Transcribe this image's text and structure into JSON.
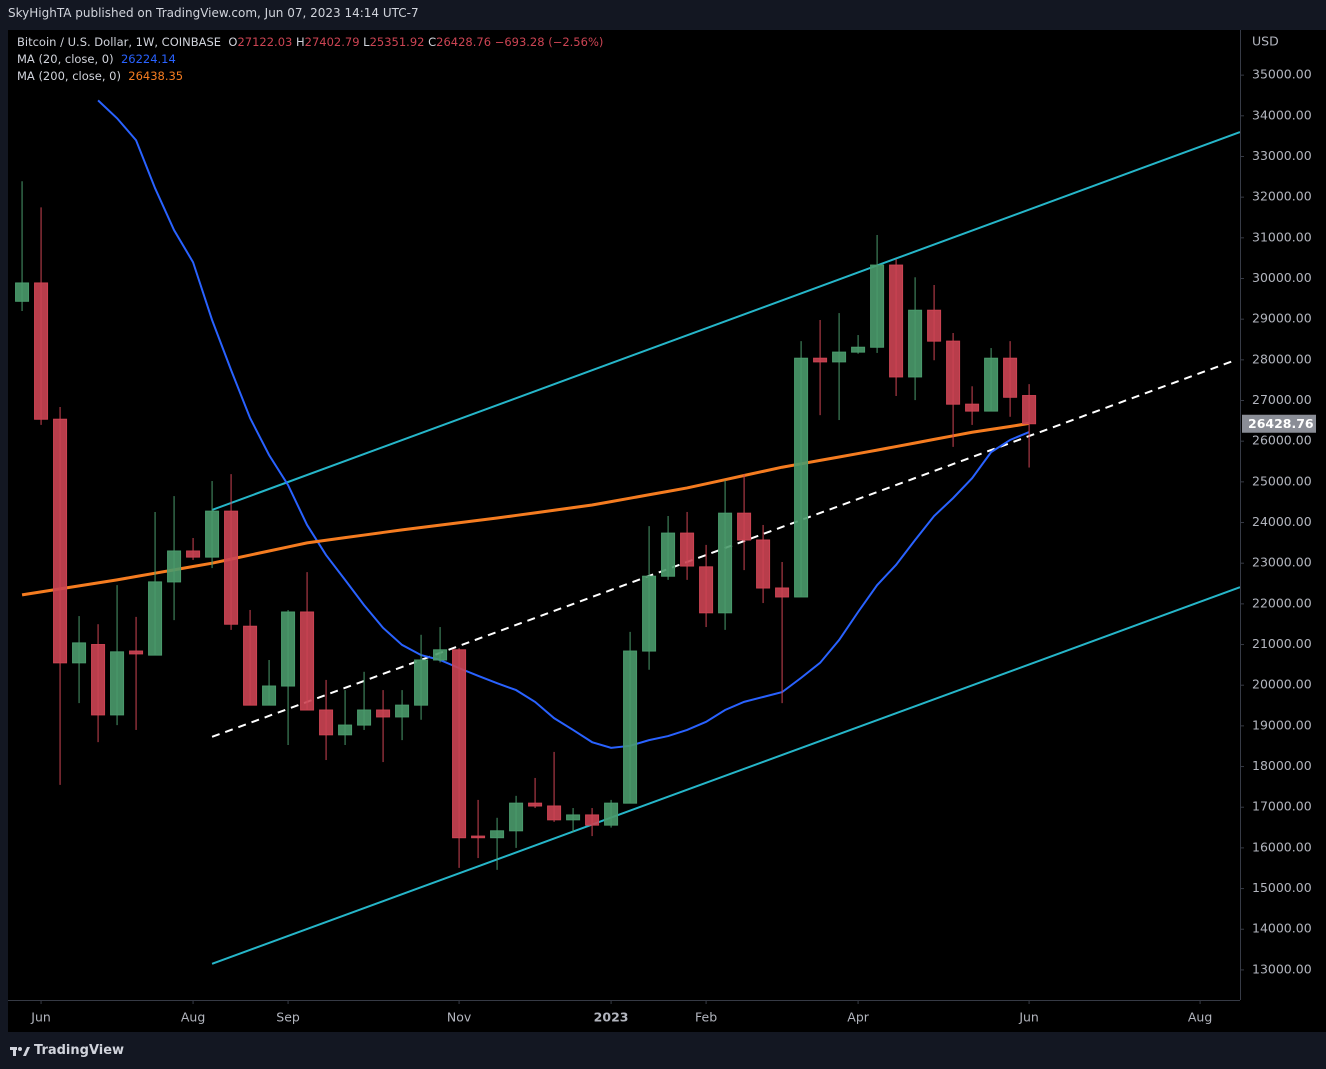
{
  "header": "SkyHighTA published on TradingView.com, Jun 07, 2023 14:14 UTC-7",
  "footer": "TradingView",
  "chart_data": {
    "type": "candlestick",
    "title": "Bitcoin / U.S. Dollar, 1W, COINBASE",
    "ohlc_labels": [
      "O",
      "H",
      "L",
      "C"
    ],
    "change_label": "−693.28 (−2.56%)",
    "y_axis_label": "USD",
    "up_color": "#4a9a6c",
    "down_color": "#cc4453",
    "x": [
      0,
      1,
      2,
      3,
      4,
      5,
      6,
      7,
      8,
      9,
      10,
      11,
      12,
      13,
      14,
      15,
      16,
      17,
      18,
      19,
      20,
      21,
      22,
      23,
      24,
      25,
      26,
      27,
      28,
      29,
      30,
      31,
      32,
      33,
      34,
      35,
      36,
      37,
      38,
      39,
      40,
      41,
      42,
      43,
      44,
      45,
      46,
      47,
      48,
      49,
      50,
      51,
      52,
      53
    ],
    "open": [
      29440,
      29890,
      26540,
      20550,
      21000,
      19270,
      20840,
      20740,
      22540,
      23300,
      23150,
      24280,
      21450,
      19510,
      19980,
      21800,
      19390,
      18780,
      19020,
      19390,
      19220,
      19510,
      20620,
      20870,
      16290,
      16250,
      16420,
      17100,
      17030,
      16690,
      16810,
      16560,
      17100,
      20840,
      22680,
      23740,
      22910,
      21780,
      24230,
      23570,
      22390,
      22170,
      28040,
      27950,
      28190,
      28310,
      30330,
      27580,
      29220,
      28460,
      26910,
      26740,
      28040,
      27122.03
    ],
    "high": [
      32390,
      31750,
      26840,
      21700,
      21500,
      22460,
      21680,
      24260,
      24650,
      23620,
      25020,
      25190,
      21850,
      20620,
      21850,
      22780,
      20130,
      19880,
      20330,
      19880,
      19880,
      21240,
      21430,
      20910,
      17180,
      16740,
      17280,
      17720,
      18360,
      16980,
      16980,
      17180,
      21310,
      23910,
      24160,
      24260,
      23450,
      25040,
      25190,
      23940,
      23030,
      28460,
      28980,
      29150,
      28610,
      31070,
      30480,
      30030,
      29840,
      28660,
      27350,
      28290,
      28460,
      27402.79
    ],
    "low": [
      29200,
      26400,
      17550,
      19560,
      18600,
      19020,
      18900,
      20740,
      21600,
      23080,
      22880,
      21360,
      19510,
      19510,
      18530,
      19390,
      18160,
      18530,
      18900,
      18110,
      18650,
      19150,
      20560,
      15510,
      15750,
      15460,
      16000,
      16980,
      16640,
      16380,
      16290,
      16500,
      17100,
      20380,
      22590,
      22590,
      21430,
      21360,
      22830,
      22020,
      19560,
      22170,
      26640,
      26520,
      28150,
      28170,
      27110,
      27010,
      27990,
      25860,
      26400,
      26740,
      26600,
      25351.92
    ],
    "close": [
      29890,
      26540,
      20550,
      21040,
      19270,
      20820,
      20770,
      22540,
      23300,
      23150,
      24280,
      21500,
      19510,
      19980,
      21800,
      19390,
      18780,
      19020,
      19390,
      19220,
      19510,
      20620,
      20870,
      16250,
      16250,
      16420,
      17100,
      17030,
      16690,
      16810,
      16560,
      17100,
      20840,
      22680,
      23740,
      22930,
      21780,
      24230,
      23570,
      22390,
      22170,
      28040,
      27950,
      28190,
      28310,
      30330,
      27580,
      29220,
      28460,
      26910,
      26740,
      28040,
      27080,
      26428.76
    ],
    "series": [
      {
        "name": "MA (20, close, 0)",
        "color": "#2962ff",
        "values": [
          null,
          null,
          null,
          null,
          34380,
          33940,
          33400,
          32220,
          31190,
          30400,
          28980,
          27750,
          26570,
          25660,
          24920,
          23940,
          23200,
          22590,
          21970,
          21410,
          20990,
          20740,
          20620,
          20420,
          20230,
          20050,
          19880,
          19590,
          19190,
          18900,
          18600,
          18460,
          18510,
          18650,
          18750,
          18900,
          19100,
          19390,
          19590,
          19710,
          19830,
          20180,
          20550,
          21110,
          21800,
          22460,
          22960,
          23570,
          24160,
          24600,
          25090,
          25730,
          26030,
          26224.14
        ]
      },
      {
        "name": "MA (200, close, 0)",
        "color": "#f57c20",
        "values": [
          22220,
          22294,
          22368,
          22442,
          22516,
          22590,
          22672,
          22754,
          22836,
          22918,
          23000,
          23100,
          23200,
          23300,
          23400,
          23500,
          23564,
          23628,
          23692,
          23756,
          23820,
          23878,
          23936,
          23994,
          24052,
          24110,
          24174,
          24238,
          24302,
          24366,
          24430,
          24514,
          24598,
          24682,
          24766,
          24850,
          24952,
          25054,
          25156,
          25258,
          25360,
          25444,
          25528,
          25612,
          25696,
          25780,
          25868,
          25956,
          26044,
          26132,
          26220,
          26290,
          26360,
          26438.35
        ]
      }
    ],
    "trendlines": [
      {
        "color": "#26b6c9",
        "dashed": false,
        "x": [
          10,
          64.1
        ],
        "y": [
          24310,
          33600
        ]
      },
      {
        "color": "#26b6c9",
        "dashed": false,
        "x": [
          10,
          64.1
        ],
        "y": [
          13150,
          22410
        ]
      },
      {
        "color": "#ffffff",
        "dashed": true,
        "x": [
          10,
          63.84
        ],
        "y": [
          18730,
          27990
        ]
      }
    ],
    "xlim": [
      -0.74,
      64.1
    ],
    "xticks": [
      {
        "value": 1,
        "label": "Jun"
      },
      {
        "value": 9,
        "label": "Aug"
      },
      {
        "value": 14,
        "label": "Sep"
      },
      {
        "value": 23,
        "label": "Nov"
      },
      {
        "value": 31,
        "label": "2023"
      },
      {
        "value": 36,
        "label": "Feb"
      },
      {
        "value": 44,
        "label": "Apr"
      },
      {
        "value": 53,
        "label": "Jun"
      },
      {
        "value": 62,
        "label": "Aug"
      }
    ],
    "ylim": [
      12260,
      36110
    ],
    "yticks": [
      {
        "value": 13000,
        "label": "13000.00"
      },
      {
        "value": 14000,
        "label": "14000.00"
      },
      {
        "value": 15000,
        "label": "15000.00"
      },
      {
        "value": 16000,
        "label": "16000.00"
      },
      {
        "value": 17000,
        "label": "17000.00"
      },
      {
        "value": 18000,
        "label": "18000.00"
      },
      {
        "value": 19000,
        "label": "19000.00"
      },
      {
        "value": 20000,
        "label": "20000.00"
      },
      {
        "value": 21000,
        "label": "21000.00"
      },
      {
        "value": 22000,
        "label": "22000.00"
      },
      {
        "value": 23000,
        "label": "23000.00"
      },
      {
        "value": 24000,
        "label": "24000.00"
      },
      {
        "value": 25000,
        "label": "25000.00"
      },
      {
        "value": 26000,
        "label": "26000.00"
      },
      {
        "value": 27000,
        "label": "27000.00"
      },
      {
        "value": 28000,
        "label": "28000.00"
      },
      {
        "value": 29000,
        "label": "29000.00"
      },
      {
        "value": 30000,
        "label": "30000.00"
      },
      {
        "value": 31000,
        "label": "31000.00"
      },
      {
        "value": 32000,
        "label": "32000.00"
      },
      {
        "value": 33000,
        "label": "33000.00"
      },
      {
        "value": 34000,
        "label": "34000.00"
      },
      {
        "value": 35000,
        "label": "35000.00"
      }
    ]
  }
}
